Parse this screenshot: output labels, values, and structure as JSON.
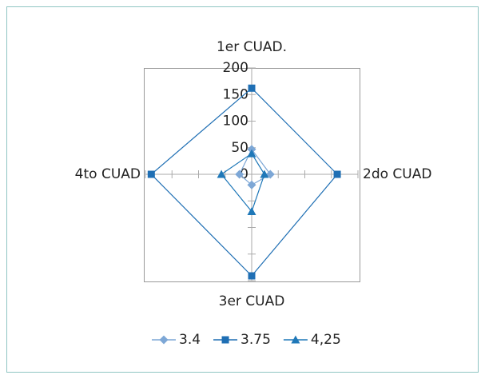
{
  "chart_data": {
    "type": "radar",
    "categories": [
      "1er CUAD.",
      "2do CUAD",
      "3er CUAD",
      "4to CUAD"
    ],
    "series": [
      {
        "name": "3.4",
        "color": "#7da7d6",
        "marker": "diamond",
        "values": [
          47,
          35,
          20,
          23
        ]
      },
      {
        "name": "3.75",
        "color": "#1f6fb4",
        "marker": "square",
        "values": [
          162,
          161,
          191,
          189
        ]
      },
      {
        "name": "4,25",
        "color": "#1f78b8",
        "marker": "triangle",
        "values": [
          39,
          24,
          70,
          57
        ]
      }
    ],
    "ylim": [
      0,
      200
    ],
    "yticks": [
      0,
      50,
      100,
      150,
      200
    ],
    "legend": "bottom"
  }
}
